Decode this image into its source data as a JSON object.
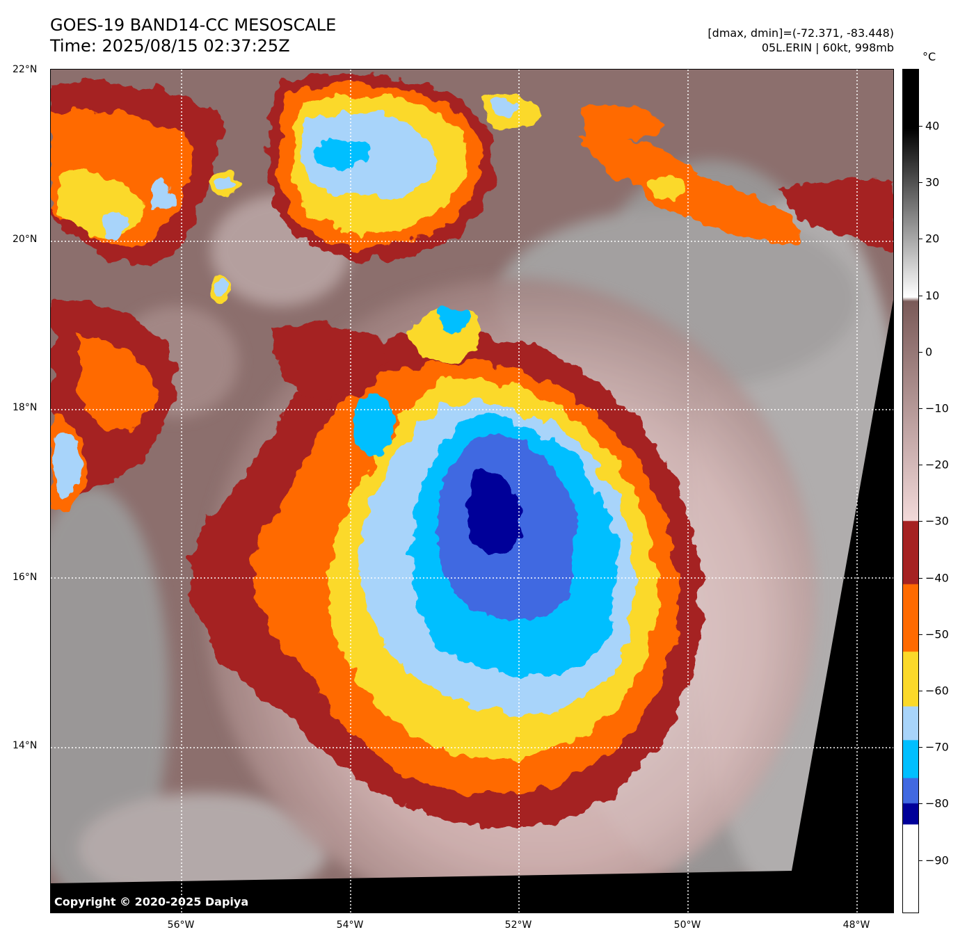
{
  "header": {
    "title_line1": "GOES-19 BAND14-CC MESOSCALE",
    "title_line2": "Time: 2025/08/15 02:37:25Z",
    "dmax_dmin": "[dmax, dmin]=(-72.371, -83.448)",
    "storm_info": "05L.ERIN | 60kt, 998mb"
  },
  "map": {
    "latitude_labels": [
      "22°N",
      "20°N",
      "18°N",
      "16°N",
      "14°N"
    ],
    "longitude_labels": [
      "56°W",
      "54°W",
      "52°W",
      "50°W",
      "48°W"
    ],
    "copyright": "Copyright © 2020-2025 Dapiya"
  },
  "colorbar": {
    "unit": "°C",
    "tick_labels": [
      "40",
      "30",
      "20",
      "10",
      "0",
      "−10",
      "−20",
      "−30",
      "−40",
      "−50",
      "−60",
      "−70",
      "−80",
      "−90"
    ],
    "colors": {
      "warm_top": "#000000",
      "gray_mid": "#808080",
      "white_10": "#ffffff",
      "brown_0": "#7a5a58",
      "pink_minus30": "#f2d9d9",
      "red_band": "#a52222",
      "orange_band": "#ff6a00",
      "yellow_band": "#fbd92a",
      "lightblue_band": "#a8d4fa",
      "cyan_band": "#00bfff",
      "blue_band": "#4169e1",
      "navy_band": "#000099"
    }
  }
}
